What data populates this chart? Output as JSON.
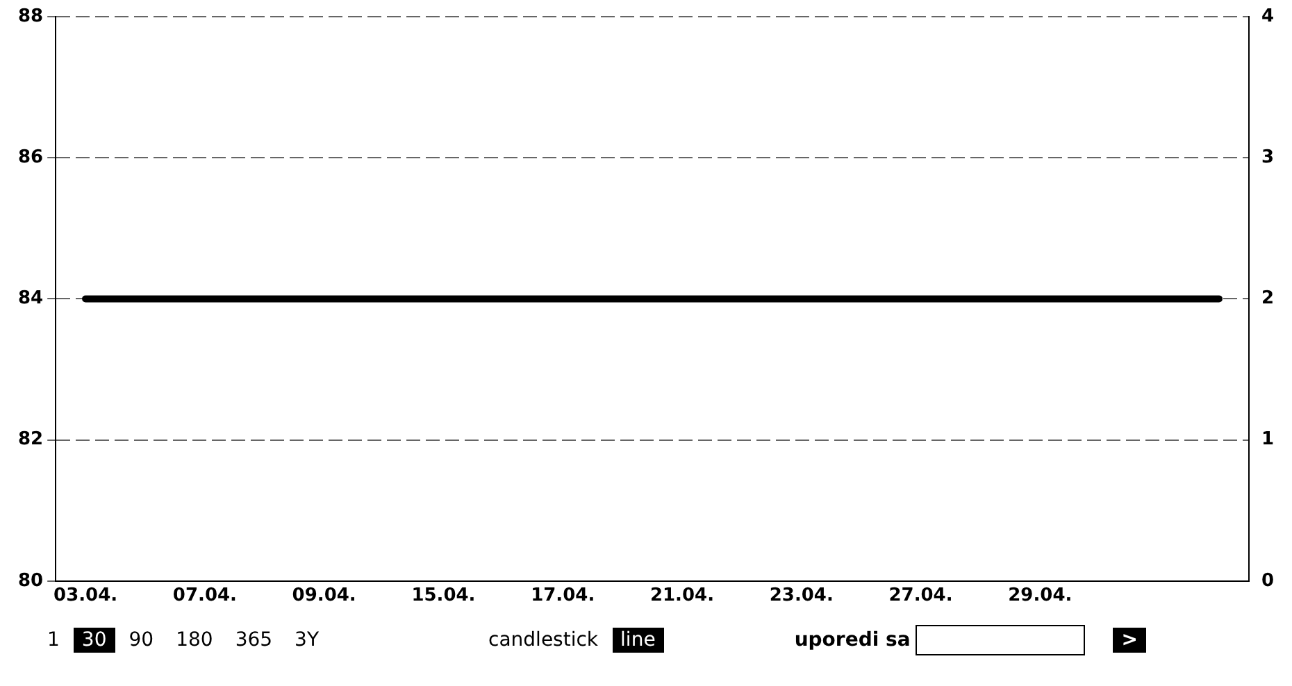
{
  "chart_data": {
    "type": "line",
    "categories": [
      "03.04.",
      null,
      "07.04.",
      null,
      "09.04.",
      null,
      "15.04.",
      null,
      "17.04.",
      null,
      "21.04.",
      null,
      "23.04.",
      null,
      "27.04.",
      null,
      "29.04.",
      null,
      null,
      null
    ],
    "series": [
      {
        "color": "#000000",
        "values": [
          84,
          84,
          84,
          84,
          84,
          84,
          84,
          84,
          84,
          84,
          84,
          84,
          84,
          84,
          84,
          84,
          84,
          84,
          84,
          84
        ]
      }
    ],
    "ylim": [
      80,
      88
    ],
    "yticks": [
      80,
      82,
      84,
      86,
      88
    ],
    "y2lim": [
      0,
      4
    ],
    "y2ticks": [
      0,
      1,
      2,
      3,
      4
    ],
    "grid": "y",
    "legend": false,
    "marker": "none",
    "line_style": "solid",
    "annotations": [
      "1",
      "30",
      "90",
      "180",
      "365",
      "3Y",
      "candlestick",
      "line",
      "uporedi sa",
      ">"
    ]
  }
}
